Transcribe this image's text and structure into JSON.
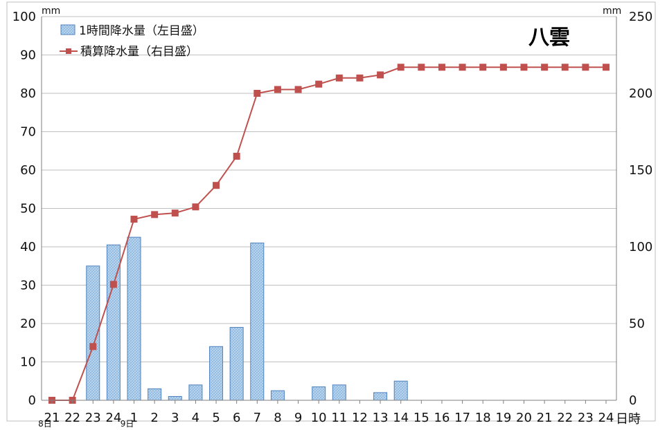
{
  "chart_data": {
    "type": "bar+line",
    "title": "八雲",
    "x": [
      "21",
      "22",
      "23",
      "24",
      "1",
      "2",
      "3",
      "4",
      "5",
      "6",
      "7",
      "8",
      "9",
      "10",
      "11",
      "12",
      "13",
      "14",
      "15",
      "16",
      "17",
      "18",
      "19",
      "20",
      "21",
      "22",
      "23",
      "24"
    ],
    "x_unit": "日時",
    "date_labels": [
      {
        "text": "8日",
        "index": 0
      },
      {
        "text": "9日",
        "index": 4
      }
    ],
    "left_axis": {
      "unit": "mm",
      "ylim": [
        0,
        100
      ],
      "ticks": [
        0,
        10,
        20,
        30,
        40,
        50,
        60,
        70,
        80,
        90,
        100
      ]
    },
    "right_axis": {
      "unit": "mm",
      "ylim": [
        0,
        250
      ],
      "ticks": [
        0,
        50,
        100,
        150,
        200,
        250
      ]
    },
    "series": [
      {
        "name": "1時間降水量（左目盛）",
        "type": "bar",
        "axis": "left",
        "color": "#9dc3e6",
        "values": [
          0,
          0,
          35,
          40.5,
          42.5,
          3,
          1,
          4,
          14,
          19,
          41,
          2.5,
          0,
          3.5,
          4,
          0,
          2,
          5,
          0,
          0,
          0,
          0,
          0,
          0,
          0,
          0,
          0,
          0
        ]
      },
      {
        "name": "積算降水量（右目盛）",
        "type": "line",
        "axis": "right",
        "color": "#c0504d",
        "values": [
          0,
          0,
          35,
          75.5,
          118,
          121,
          122,
          126,
          140,
          159,
          200,
          202.5,
          202.5,
          206,
          210,
          210,
          212,
          217,
          217,
          217,
          217,
          217,
          217,
          217,
          217,
          217,
          217,
          217
        ]
      }
    ],
    "grid": true,
    "legend": "top-left"
  }
}
